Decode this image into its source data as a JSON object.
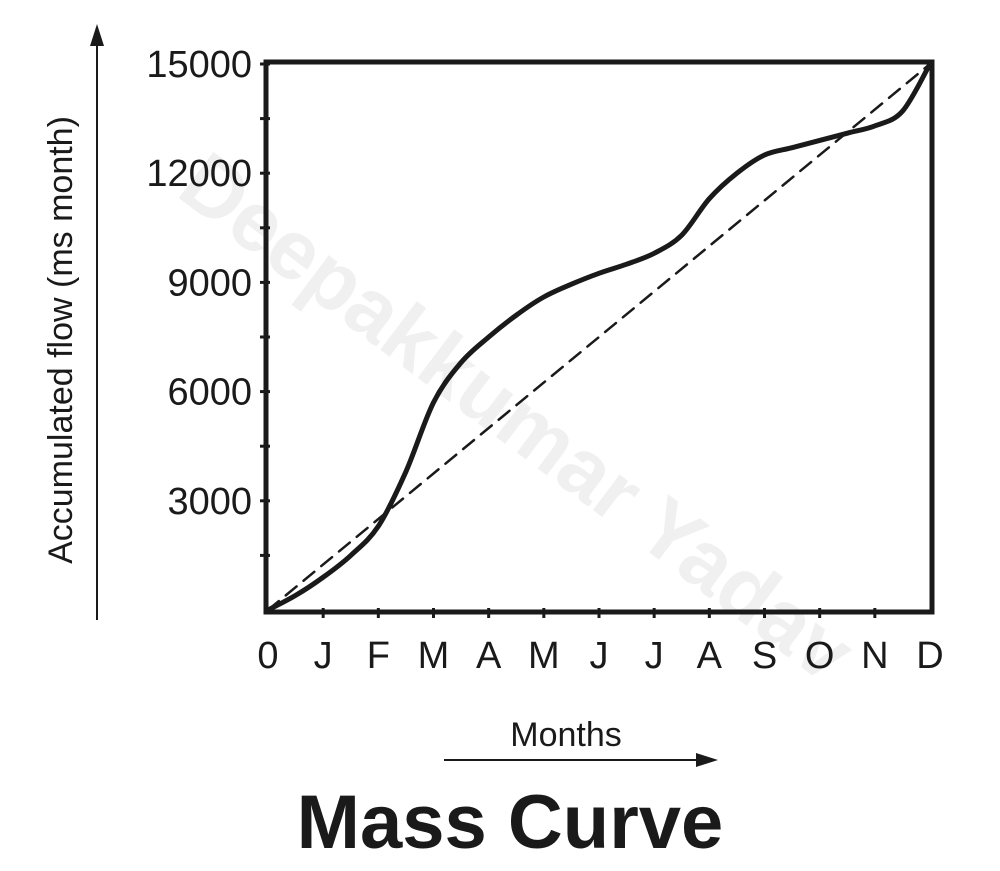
{
  "chart_data": {
    "type": "line",
    "title": "Mass Curve",
    "xlabel": "Months",
    "ylabel": "Accumulated flow (ms month)",
    "categories": [
      "0",
      "J",
      "F",
      "M",
      "A",
      "M",
      "J",
      "J",
      "A",
      "S",
      "O",
      "N",
      "D"
    ],
    "xlim": [
      0,
      12
    ],
    "ylim": [
      0,
      15000
    ],
    "yticks": [
      3000,
      6000,
      9000,
      12000,
      15000
    ],
    "grid": false,
    "series": [
      {
        "style": "solid",
        "x": [
          0,
          0.5,
          1,
          1.5,
          2,
          2.5,
          3,
          3.5,
          4,
          4.5,
          5,
          5.5,
          6,
          6.5,
          7,
          7.5,
          8,
          8.5,
          9,
          9.5,
          10,
          10.5,
          11,
          11.5,
          12
        ],
        "y": [
          0,
          400,
          900,
          1500,
          2300,
          3800,
          5700,
          6800,
          7500,
          8100,
          8600,
          8950,
          9250,
          9500,
          9800,
          10300,
          11300,
          12000,
          12500,
          12700,
          12900,
          13100,
          13300,
          13700,
          15000
        ]
      },
      {
        "style": "dashed",
        "x": [
          0,
          12
        ],
        "y": [
          0,
          15000
        ]
      }
    ]
  },
  "colors": {
    "ink": "#1a1a1a",
    "watermark": "#bdbdbd",
    "background": "#ffffff"
  },
  "watermark_text": "Deepakkumar Yadav"
}
